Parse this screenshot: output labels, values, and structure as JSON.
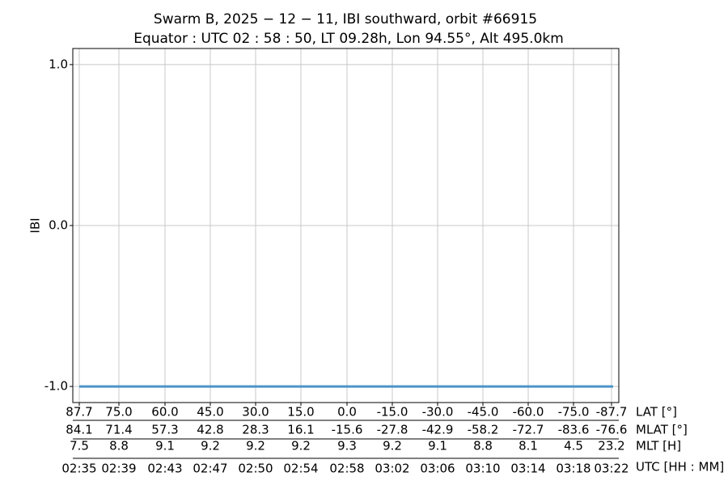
{
  "chart_data": {
    "type": "line",
    "title": "Swarm B,  2025 − 12 − 11,  IBI southward,  orbit #66915",
    "subtitle": "Equator :  UTC 02 : 58 : 50,  LT 09.28h,  Lon 94.55°,  Alt 495.0km",
    "y_label": "IBI",
    "x_label": "UTC [HH : MM]",
    "categories": [
      "02:35",
      "02:39",
      "02:43",
      "02:47",
      "02:50",
      "02:54",
      "02:58",
      "03:02",
      "03:06",
      "03:10",
      "03:14",
      "03:18",
      "03:22"
    ],
    "extra_rows": [
      {
        "label": "LAT [°]",
        "values": [
          "87.7",
          "75.0",
          "60.0",
          "45.0",
          "30.0",
          "15.0",
          "0.0",
          "-15.0",
          "-30.0",
          "-45.0",
          "-60.0",
          "-75.0",
          "-87.7"
        ]
      },
      {
        "label": "MLAT [°]",
        "values": [
          "84.1",
          "71.4",
          "57.3",
          "42.8",
          "28.3",
          "16.1",
          "-15.6",
          "-27.8",
          "-42.9",
          "-58.2",
          "-72.7",
          "-83.6",
          "-76.6"
        ]
      },
      {
        "label": "MLT [H]",
        "values": [
          "7.5",
          "8.8",
          "9.1",
          "9.2",
          "9.2",
          "9.2",
          "9.3",
          "9.2",
          "9.1",
          "8.8",
          "8.1",
          "4.5",
          "23.2"
        ]
      }
    ],
    "series": [
      {
        "color": "#4a94c8",
        "values": [
          -1,
          -1,
          -1,
          -1,
          -1,
          -1,
          -1,
          -1,
          -1,
          -1,
          -1,
          -1,
          -1
        ]
      }
    ],
    "ylim": [
      -1.1,
      1.1
    ],
    "yticks": [
      {
        "value": -1,
        "label": "-1.0"
      },
      {
        "value": 0,
        "label": "0.0"
      },
      {
        "value": 1,
        "label": "1.0"
      }
    ],
    "grid": true
  }
}
